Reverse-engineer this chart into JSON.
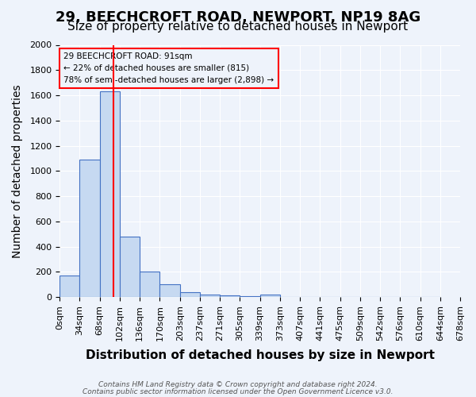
{
  "title_line1": "29, BEECHCROFT ROAD, NEWPORT, NP19 8AG",
  "title_line2": "Size of property relative to detached houses in Newport",
  "xlabel": "Distribution of detached houses by size in Newport",
  "ylabel": "Number of detached properties",
  "footer_line1": "Contains HM Land Registry data © Crown copyright and database right 2024.",
  "footer_line2": "Contains public sector information licensed under the Open Government Licence v3.0.",
  "annotation_line1": "29 BEECHCROFT ROAD: 91sqm",
  "annotation_line2": "← 22% of detached houses are smaller (815)",
  "annotation_line3": "78% of semi-detached houses are larger (2,898) →",
  "bar_values": [
    170,
    1090,
    1630,
    480,
    200,
    100,
    40,
    20,
    15,
    10,
    20,
    0,
    0,
    0,
    0,
    0,
    0,
    0,
    0
  ],
  "bin_labels": [
    "0sqm",
    "34sqm",
    "68sqm",
    "102sqm",
    "136sqm",
    "170sqm",
    "203sqm",
    "237sqm",
    "271sqm",
    "305sqm",
    "339sqm",
    "373sqm",
    "407sqm",
    "441sqm",
    "475sqm",
    "509sqm",
    "542sqm",
    "576sqm",
    "610sqm",
    "644sqm",
    "678sqm"
  ],
  "bar_color": "#c6d9f1",
  "bar_edge_color": "#4472c4",
  "red_line_x": 91,
  "bin_width": 34,
  "ylim": [
    0,
    2000
  ],
  "yticks": [
    0,
    200,
    400,
    600,
    800,
    1000,
    1200,
    1400,
    1600,
    1800,
    2000
  ],
  "background_color": "#eef3fb",
  "grid_color": "#ffffff",
  "title1_fontsize": 13,
  "title2_fontsize": 11,
  "xlabel_fontsize": 11,
  "ylabel_fontsize": 10,
  "tick_fontsize": 8
}
